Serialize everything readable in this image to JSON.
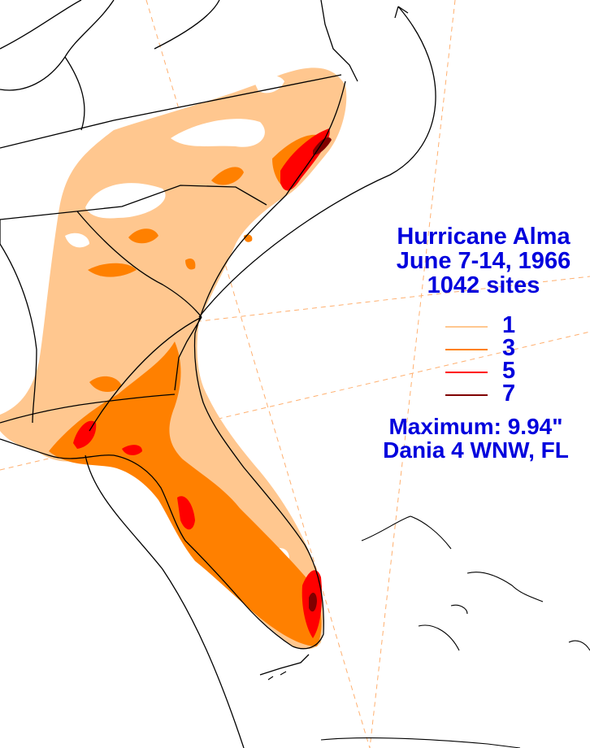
{
  "title": {
    "line1": "Hurricane Alma",
    "line2": "June 7-14, 1966",
    "line3": "1042 sites"
  },
  "legend": {
    "items": [
      {
        "label": "1",
        "color": "#ffc78f"
      },
      {
        "label": "3",
        "color": "#ff8000"
      },
      {
        "label": "5",
        "color": "#ff0000"
      },
      {
        "label": "7",
        "color": "#800000"
      }
    ]
  },
  "maximum": {
    "line1": "Maximum:  9.94\"",
    "line2": "Dania 4 WNW, FL"
  },
  "colors": {
    "text": "#0000dd",
    "rain_1": "#ffc78f",
    "rain_3": "#ff8000",
    "rain_5": "#ff0000",
    "rain_7": "#800000",
    "outline": "#000000",
    "graticule": "#ffb070"
  }
}
